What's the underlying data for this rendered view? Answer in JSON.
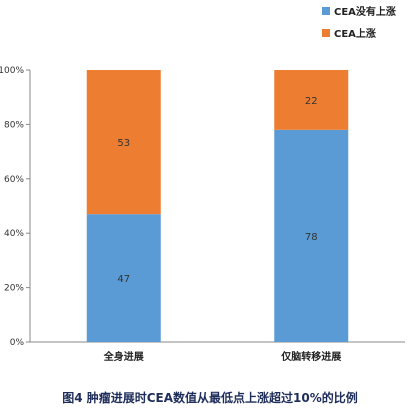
{
  "chart_data": {
    "type": "bar",
    "stacked": true,
    "percent": true,
    "categories": [
      "全身进展",
      "仅脑转移进展"
    ],
    "series": [
      {
        "name": "CEA没有上涨",
        "color": "#5b9bd5",
        "values": [
          47,
          78
        ]
      },
      {
        "name": "CEA上涨",
        "color": "#ed7d31",
        "values": [
          53,
          22
        ]
      }
    ],
    "ylim": [
      0,
      100
    ],
    "yticks": [
      "0%",
      "20%",
      "40%",
      "60%",
      "80%",
      "100%"
    ],
    "grid": false,
    "legend": "top-right",
    "title": "图4 肿瘤进展时CEA数值从最低点上涨超过10%的比例"
  }
}
